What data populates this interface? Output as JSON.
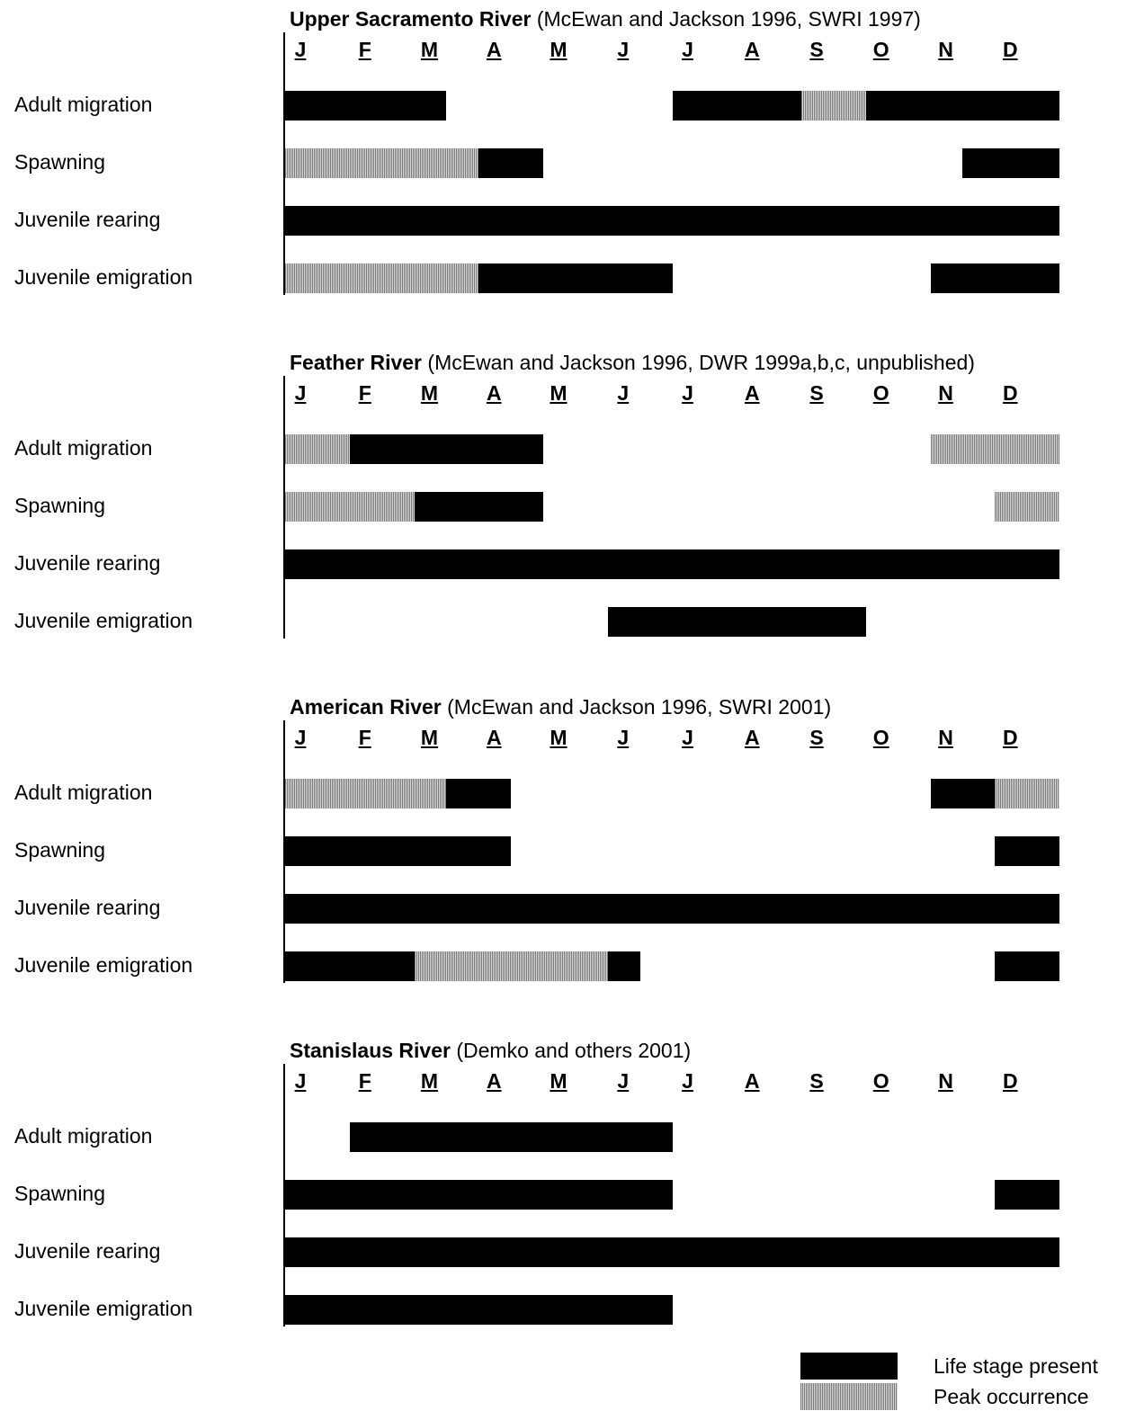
{
  "months": [
    "J",
    "F",
    "M",
    "A",
    "M",
    "J",
    "J",
    "A",
    "S",
    "O",
    "N",
    "D"
  ],
  "colors": {
    "present": "#000000",
    "peak": "#b8b8b8"
  },
  "chart_data": [
    {
      "type": "gantt",
      "title_river": "Upper Sacramento River",
      "title_source": "(McEwan and Jackson 1996, SWRI 1997)",
      "rows": [
        {
          "label": "Adult migration",
          "segments": [
            {
              "start": 0,
              "end": 2.5,
              "status": "present"
            },
            {
              "start": 6,
              "end": 8,
              "status": "present"
            },
            {
              "start": 8,
              "end": 9,
              "status": "peak"
            },
            {
              "start": 9,
              "end": 12,
              "status": "present"
            }
          ]
        },
        {
          "label": "Spawning",
          "segments": [
            {
              "start": 0,
              "end": 3,
              "status": "peak"
            },
            {
              "start": 3,
              "end": 4,
              "status": "present"
            },
            {
              "start": 10.5,
              "end": 12,
              "status": "present"
            }
          ]
        },
        {
          "label": "Juvenile rearing",
          "segments": [
            {
              "start": 0,
              "end": 12,
              "status": "present"
            }
          ]
        },
        {
          "label": "Juvenile emigration",
          "segments": [
            {
              "start": 0,
              "end": 3,
              "status": "peak"
            },
            {
              "start": 3,
              "end": 6,
              "status": "present"
            },
            {
              "start": 10,
              "end": 12,
              "status": "present"
            }
          ]
        }
      ]
    },
    {
      "type": "gantt",
      "title_river": "Feather River",
      "title_source": "(McEwan and Jackson 1996, DWR 1999a,b,c, unpublished)",
      "rows": [
        {
          "label": "Adult migration",
          "segments": [
            {
              "start": 0,
              "end": 1,
              "status": "peak"
            },
            {
              "start": 1,
              "end": 4,
              "status": "present"
            },
            {
              "start": 10,
              "end": 12,
              "status": "peak"
            }
          ]
        },
        {
          "label": "Spawning",
          "segments": [
            {
              "start": 0,
              "end": 2,
              "status": "peak"
            },
            {
              "start": 2,
              "end": 4,
              "status": "present"
            },
            {
              "start": 11,
              "end": 12,
              "status": "peak"
            }
          ]
        },
        {
          "label": "Juvenile rearing",
          "segments": [
            {
              "start": 0,
              "end": 12,
              "status": "present"
            }
          ]
        },
        {
          "label": "Juvenile emigration",
          "segments": [
            {
              "start": 5,
              "end": 9,
              "status": "present"
            }
          ]
        }
      ]
    },
    {
      "type": "gantt",
      "title_river": "American River",
      "title_source": "(McEwan and Jackson 1996, SWRI 2001)",
      "rows": [
        {
          "label": "Adult migration",
          "segments": [
            {
              "start": 0,
              "end": 2.5,
              "status": "peak"
            },
            {
              "start": 2.5,
              "end": 3.5,
              "status": "present"
            },
            {
              "start": 10,
              "end": 11,
              "status": "present"
            },
            {
              "start": 11,
              "end": 12,
              "status": "peak"
            }
          ]
        },
        {
          "label": "Spawning",
          "segments": [
            {
              "start": 0,
              "end": 3.5,
              "status": "present"
            },
            {
              "start": 11,
              "end": 12,
              "status": "present"
            }
          ]
        },
        {
          "label": "Juvenile rearing",
          "segments": [
            {
              "start": 0,
              "end": 12,
              "status": "present"
            }
          ]
        },
        {
          "label": "Juvenile emigration",
          "segments": [
            {
              "start": 0,
              "end": 2,
              "status": "present"
            },
            {
              "start": 2,
              "end": 5,
              "status": "peak"
            },
            {
              "start": 5,
              "end": 5.5,
              "status": "present"
            },
            {
              "start": 11,
              "end": 12,
              "status": "present"
            }
          ]
        }
      ]
    },
    {
      "type": "gantt",
      "title_river": "Stanislaus River",
      "title_source": "(Demko and others 2001)",
      "rows": [
        {
          "label": "Adult migration",
          "segments": [
            {
              "start": 1,
              "end": 6,
              "status": "present"
            }
          ]
        },
        {
          "label": "Spawning",
          "segments": [
            {
              "start": 0,
              "end": 6,
              "status": "present"
            },
            {
              "start": 11,
              "end": 12,
              "status": "present"
            }
          ]
        },
        {
          "label": "Juvenile rearing",
          "segments": [
            {
              "start": 0,
              "end": 12,
              "status": "present"
            }
          ]
        },
        {
          "label": "Juvenile emigration",
          "segments": [
            {
              "start": 0,
              "end": 6,
              "status": "present"
            }
          ]
        }
      ]
    }
  ],
  "legend": [
    {
      "label": "Life stage present",
      "status": "present"
    },
    {
      "label": "Peak occurrence",
      "status": "peak"
    }
  ]
}
